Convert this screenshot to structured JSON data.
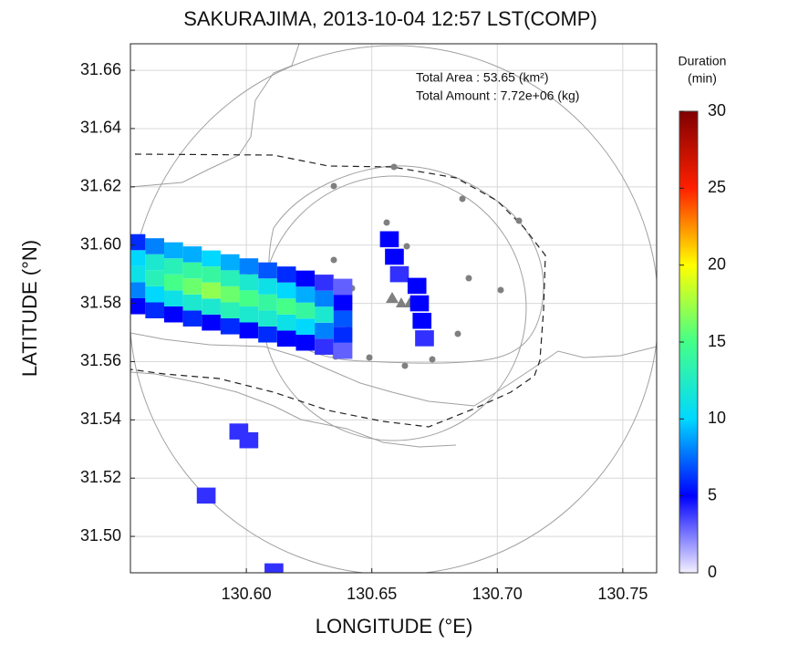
{
  "chart_data": {
    "type": "map",
    "title": "SAKURAJIMA, 2013-10-04 12:57 LST(COMP)",
    "xlabel": "LONGITUDE (°E)",
    "ylabel": "LATITUDE (°N)",
    "annotations": [
      "Total Area   : 53.65 (km²)",
      "Total Amount : 7.72e+06 (kg)"
    ],
    "colorbar_title": [
      "Duration",
      "(min)"
    ],
    "clim": [
      0,
      30
    ],
    "cticks": [
      0,
      5,
      10,
      15,
      20,
      25,
      30
    ],
    "colormap": [
      "#f4f0ff",
      "#0000ff",
      "#00d8ff",
      "#44ff88",
      "#ffff00",
      "#ff2000",
      "#800000"
    ],
    "xlim": [
      130.5538,
      130.7635
    ],
    "ylim": [
      31.4875,
      31.6691
    ],
    "xticks": [
      {
        "value": 130.6,
        "label": "130.60"
      },
      {
        "value": 130.65,
        "label": "130.65"
      },
      {
        "value": 130.7,
        "label": "130.70"
      },
      {
        "value": 130.75,
        "label": "130.75"
      }
    ],
    "yticks": [
      {
        "value": 31.5,
        "label": "31.50"
      },
      31.52,
      31.54,
      31.56,
      31.58,
      {
        "value": 31.6,
        "label": "31.60"
      },
      31.62,
      31.64,
      31.66
    ],
    "grid": true,
    "x": [
      130.556,
      130.556,
      130.556,
      130.556,
      130.556,
      130.5635,
      130.5635,
      130.5635,
      130.5635,
      130.5635,
      130.571,
      130.571,
      130.571,
      130.571,
      130.571,
      130.5785,
      130.5785,
      130.5785,
      130.5785,
      130.5785,
      130.586,
      130.586,
      130.586,
      130.586,
      130.586,
      130.5935,
      130.5935,
      130.5935,
      130.5935,
      130.5935,
      130.601,
      130.601,
      130.601,
      130.601,
      130.601,
      130.6085,
      130.6085,
      130.6085,
      130.6085,
      130.6085,
      130.616,
      130.616,
      130.616,
      130.616,
      130.616,
      130.6235,
      130.6235,
      130.6235,
      130.6235,
      130.6235,
      130.631,
      130.631,
      130.631,
      130.631,
      130.631,
      130.6385,
      130.6385,
      130.6385,
      130.6385,
      130.6385,
      130.657,
      130.659,
      130.661,
      130.668,
      130.669,
      130.67,
      130.671,
      130.597,
      130.601,
      130.584,
      130.611
    ],
    "y": [
      31.579,
      31.5845,
      31.59,
      31.5955,
      31.601,
      31.5776,
      31.5831,
      31.5886,
      31.5941,
      31.5996,
      31.5762,
      31.5817,
      31.5872,
      31.5927,
      31.5982,
      31.5748,
      31.5803,
      31.5858,
      31.5913,
      31.5968,
      31.5734,
      31.5789,
      31.5844,
      31.5899,
      31.5954,
      31.5721,
      31.5776,
      31.5831,
      31.5886,
      31.5941,
      31.5707,
      31.5762,
      31.5817,
      31.5872,
      31.5927,
      31.5693,
      31.5748,
      31.5803,
      31.5858,
      31.5913,
      31.5679,
      31.5734,
      31.5789,
      31.5844,
      31.5899,
      31.5665,
      31.572,
      31.5775,
      31.583,
      31.5885,
      31.5651,
      31.5706,
      31.5761,
      31.5816,
      31.5871,
      31.5637,
      31.5692,
      31.5747,
      31.5802,
      31.5857,
      31.602,
      31.596,
      31.59,
      31.586,
      31.58,
      31.574,
      31.568,
      31.536,
      31.533,
      31.514,
      31.488
    ],
    "values": [
      5,
      8,
      11,
      10,
      6,
      6,
      10,
      13,
      12,
      8,
      5,
      11,
      15,
      13,
      9,
      6,
      12,
      16,
      14,
      9,
      5,
      12,
      17,
      14,
      10,
      6,
      13,
      16,
      13,
      9,
      5,
      12,
      15,
      12,
      8,
      6,
      12,
      14,
      11,
      7,
      5,
      11,
      15,
      10,
      6,
      5,
      10,
      14,
      9,
      5,
      4,
      8,
      12,
      8,
      4,
      3,
      6,
      7,
      5,
      3,
      5,
      5,
      4,
      5,
      5,
      5,
      4,
      4,
      4,
      4,
      4
    ]
  }
}
